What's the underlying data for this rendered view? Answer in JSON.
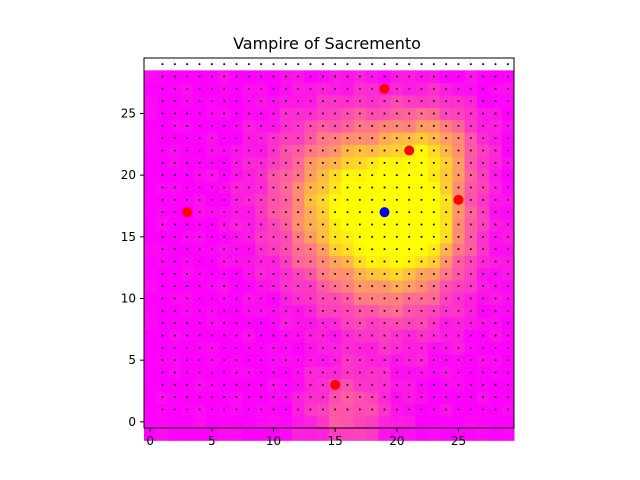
{
  "chart_data": {
    "type": "heatmap",
    "title": "Vampire of Sacremento",
    "xlabel": "",
    "ylabel": "",
    "grid_size": [
      30,
      30
    ],
    "xlim": [
      -0.5,
      29.5
    ],
    "ylim": [
      29.5,
      -0.5
    ],
    "xticks": [
      0,
      5,
      10,
      15,
      20,
      25
    ],
    "yticks": [
      0,
      5,
      10,
      15,
      20,
      25
    ],
    "grid": false,
    "colormap": "spring",
    "colormap_stops": [
      "#ff00ff",
      "#ffff00"
    ],
    "heat_peaks": [
      {
        "x": 17,
        "y": 19,
        "strength": 1.0,
        "spread": 4.5
      },
      {
        "x": 22,
        "y": 17,
        "strength": 0.6,
        "spread": 2.5
      },
      {
        "x": 23,
        "y": 23,
        "strength": 0.55,
        "spread": 2.5
      },
      {
        "x": 16,
        "y": 2,
        "strength": 0.35,
        "spread": 2.5
      },
      {
        "x": 20,
        "y": 13,
        "strength": 0.35,
        "spread": 4.0
      }
    ],
    "dot_grid": {
      "x_start": 1,
      "y_start": 1,
      "step": 1,
      "count": 29,
      "color": "#000000"
    },
    "points": [
      {
        "x": 15,
        "y": 3,
        "color": "#ff0000"
      },
      {
        "x": 3,
        "y": 17,
        "color": "#ff0000"
      },
      {
        "x": 25,
        "y": 18,
        "color": "#ff0000"
      },
      {
        "x": 21,
        "y": 22,
        "color": "#ff0000"
      },
      {
        "x": 19,
        "y": 27,
        "color": "#ff0000"
      },
      {
        "x": 19,
        "y": 17,
        "color": "#0000ff"
      }
    ]
  }
}
